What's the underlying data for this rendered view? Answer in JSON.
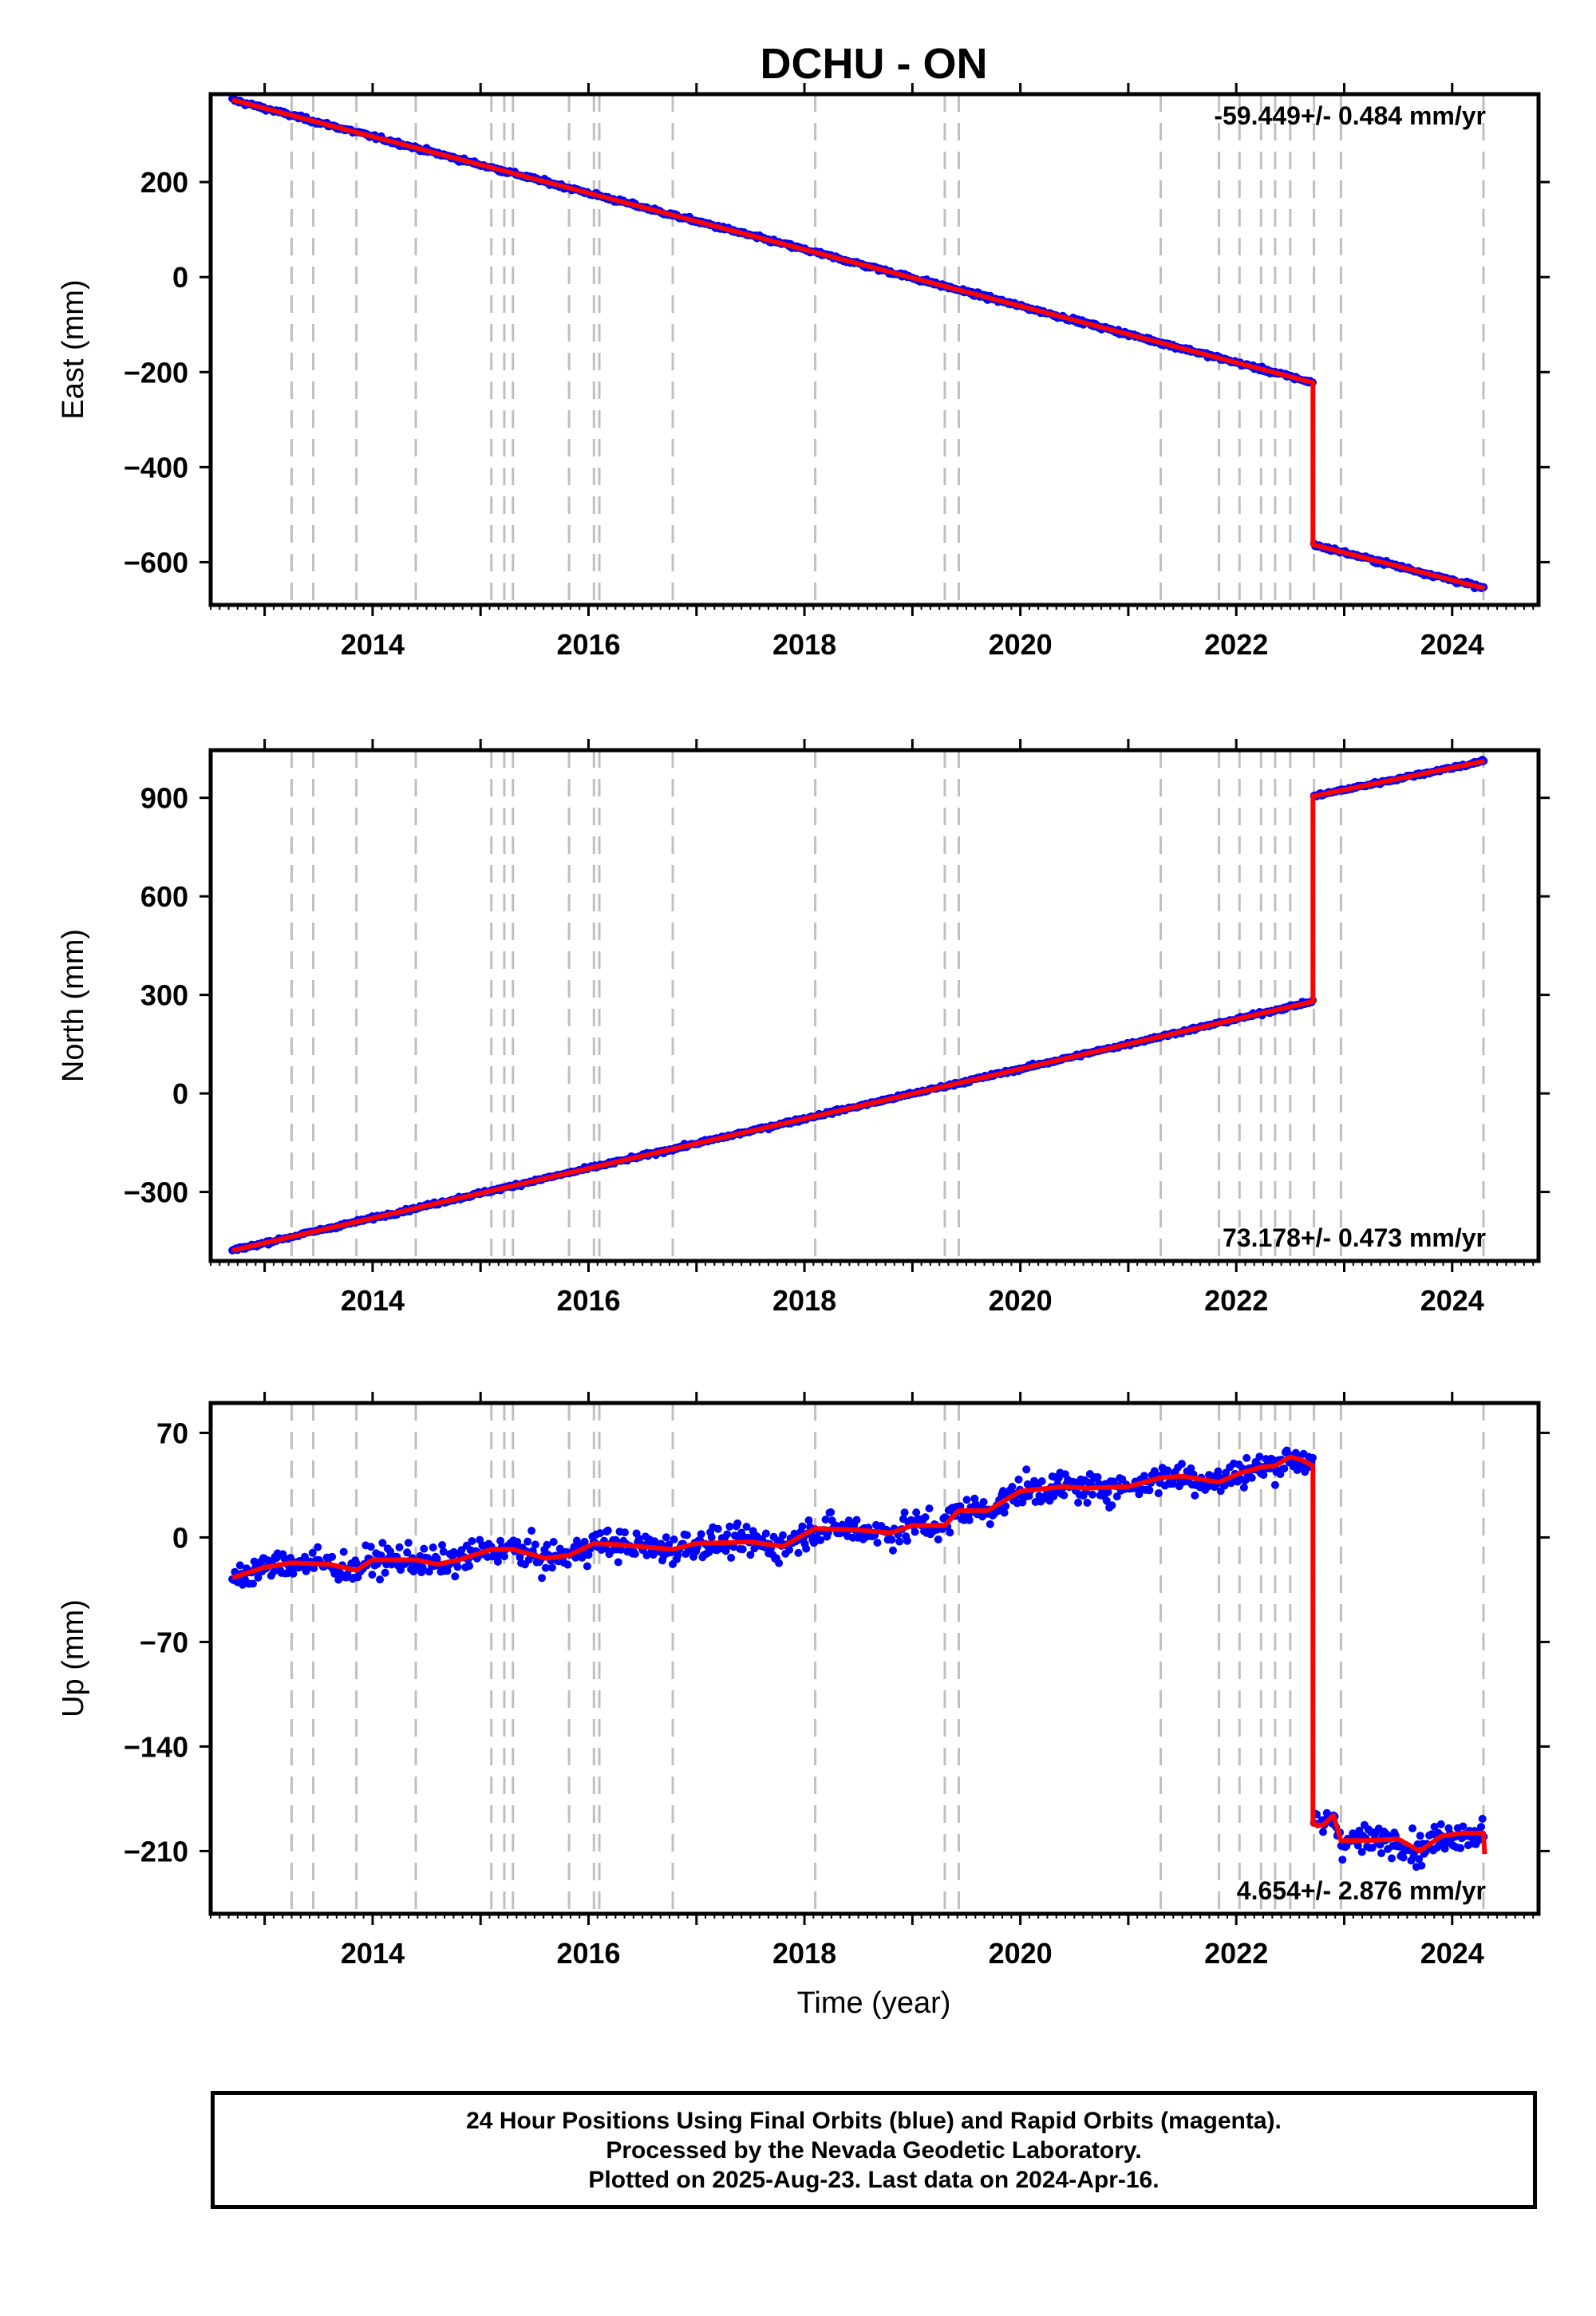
{
  "chart_data": {
    "title": "DCHU - ON",
    "type": "scatter",
    "xlabel": "Time (year)",
    "xlim": [
      2012.5,
      2024.8
    ],
    "x_ticks": [
      2014,
      2016,
      2018,
      2020,
      2022,
      2024
    ],
    "x_tick_labels": [
      "2014",
      "2016",
      "2018",
      "2020",
      "2022",
      "2024"
    ],
    "event_lines_x": [
      2013.25,
      2013.45,
      2013.85,
      2014.4,
      2015.1,
      2015.22,
      2015.3,
      2015.82,
      2016.05,
      2016.1,
      2016.78,
      2018.1,
      2019.3,
      2019.43,
      2021.3,
      2021.84,
      2022.03,
      2022.23,
      2022.36,
      2022.5,
      2022.72,
      2022.97,
      2024.29
    ],
    "series_colors": {
      "daily_positions": "#0000ff",
      "model_fit": "#ff0000",
      "event_lines": "#bfbfbf"
    },
    "panels": [
      {
        "id": "east",
        "ylabel": "East (mm)",
        "ylim": [
          -690,
          385
        ],
        "y_ticks": [
          200,
          0,
          -200,
          -400,
          -600
        ],
        "y_tick_labels": [
          "200",
          "0",
          "−200",
          "−400",
          "−600"
        ],
        "rate_text": "-59.449+/- 0.484 mm/yr",
        "rate_position": "top-right",
        "noise_mm": 3,
        "segments": [
          {
            "x": [
              2012.7,
              2022.71
            ],
            "y": [
              373,
              -222
            ]
          },
          {
            "x": [
              2022.71,
              2024.3
            ],
            "y": [
              -563,
              -655
            ]
          }
        ],
        "fit_steps": [
          {
            "x": 2022.71,
            "from": -222,
            "to": -563
          }
        ]
      },
      {
        "id": "north",
        "ylabel": "North (mm)",
        "ylim": [
          -510,
          1045
        ],
        "y_ticks": [
          900,
          600,
          300,
          0,
          -300
        ],
        "y_tick_labels": [
          "900",
          "600",
          "300",
          "0",
          "−300"
        ],
        "rate_text": "73.178+/- 0.473 mm/yr",
        "rate_position": "bottom-right",
        "noise_mm": 3.5,
        "segments": [
          {
            "x": [
              2012.7,
              2022.71
            ],
            "y": [
              -478,
              280
            ]
          },
          {
            "x": [
              2022.71,
              2024.3
            ],
            "y": [
              905,
              1012
            ]
          }
        ],
        "fit_steps": [
          {
            "x": 2022.71,
            "from": 280,
            "to": 905
          }
        ]
      },
      {
        "id": "up",
        "ylabel": "Up (mm)",
        "ylim": [
          -252,
          90
        ],
        "y_ticks": [
          70,
          0,
          -70,
          -140,
          -210
        ],
        "y_tick_labels": [
          "70",
          "0",
          "−70",
          "−140",
          "−210"
        ],
        "rate_text": "4.654+/- 2.876 mm/yr",
        "rate_position": "bottom-right",
        "noise_mm": 7,
        "fit_x": [
          2012.7,
          2013.0,
          2013.25,
          2013.6,
          2013.85,
          2014.0,
          2014.4,
          2014.6,
          2014.8,
          2015.1,
          2015.3,
          2015.6,
          2015.82,
          2016.05,
          2016.3,
          2016.78,
          2017.0,
          2017.5,
          2017.8,
          2018.1,
          2018.5,
          2018.8,
          2019.0,
          2019.3,
          2019.43,
          2019.7,
          2020.0,
          2020.4,
          2020.6,
          2021.0,
          2021.3,
          2021.5,
          2021.84,
          2022.03,
          2022.23,
          2022.36,
          2022.5,
          2022.6,
          2022.71,
          2022.71,
          2022.8,
          2022.9,
          2022.97,
          2023.2,
          2023.5,
          2023.7,
          2023.9,
          2024.1,
          2024.29,
          2024.3
        ],
        "fit_y": [
          -27,
          -20,
          -17,
          -18,
          -22,
          -15,
          -15,
          -18,
          -15,
          -8,
          -8,
          -14,
          -12,
          -4,
          -5,
          -8,
          -4,
          -3,
          -6,
          6,
          5,
          3,
          8,
          8,
          18,
          18,
          31,
          34,
          33,
          34,
          40,
          41,
          37,
          43,
          47,
          48,
          54,
          52,
          48,
          -192,
          -193,
          -186,
          -203,
          -203,
          -202,
          -210,
          -200,
          -198,
          -198,
          -212
        ]
      }
    ]
  },
  "footer": {
    "line1": "24 Hour Positions Using Final Orbits (blue) and Rapid Orbits (magenta).",
    "line2": "Processed by the Nevada Geodetic Laboratory.",
    "line3": "Plotted on 2025-Aug-23. Last data on 2024-Apr-16."
  }
}
